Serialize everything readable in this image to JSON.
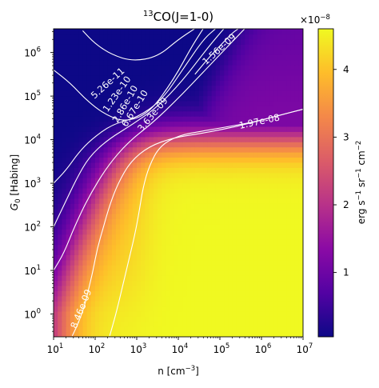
{
  "chart_data": {
    "type": "heatmap",
    "title": {
      "pre": "",
      "sup": "13",
      "post": "CO(J=1-0)"
    },
    "xlabel": {
      "pre": "n [cm",
      "sup": "−3",
      "post": "]"
    },
    "ylabel": {
      "pre": "G",
      "sub": "0",
      "post": " [Habing]"
    },
    "x_scale": "log",
    "y_scale": "log",
    "xlim": [
      10,
      10000000
    ],
    "ylim": [
      0.3,
      3500000
    ],
    "x_ticks": [
      {
        "value": 10,
        "base": "10",
        "exp": "1"
      },
      {
        "value": 100,
        "base": "10",
        "exp": "2"
      },
      {
        "value": 1000,
        "base": "10",
        "exp": "3"
      },
      {
        "value": 10000,
        "base": "10",
        "exp": "4"
      },
      {
        "value": 100000,
        "base": "10",
        "exp": "5"
      },
      {
        "value": 1000000,
        "base": "10",
        "exp": "6"
      },
      {
        "value": 10000000,
        "base": "10",
        "exp": "7"
      }
    ],
    "y_ticks": [
      {
        "value": 1,
        "base": "10",
        "exp": "0"
      },
      {
        "value": 10,
        "base": "10",
        "exp": "1"
      },
      {
        "value": 100,
        "base": "10",
        "exp": "2"
      },
      {
        "value": 1000,
        "base": "10",
        "exp": "3"
      },
      {
        "value": 10000,
        "base": "10",
        "exp": "4"
      },
      {
        "value": 100000,
        "base": "10",
        "exp": "5"
      },
      {
        "value": 1000000,
        "base": "10",
        "exp": "6"
      }
    ],
    "colormap": "plasma",
    "colormap_stops": [
      "#0d0887",
      "#5302a3",
      "#8b0aa5",
      "#b83289",
      "#db5c68",
      "#f48849",
      "#febd2a",
      "#f0f921"
    ],
    "colorbar": {
      "range": [
        0.05,
        4.6
      ],
      "ticks": [
        "1",
        "2",
        "3",
        "4"
      ],
      "tick_values": [
        1,
        2,
        3,
        4
      ],
      "offset": {
        "pre": "×10",
        "sup": "−8"
      },
      "label": {
        "pre": "erg s",
        "s1": "−1",
        "mid1": " sr",
        "s2": "−1",
        "mid2": " cm",
        "s3": "−2"
      }
    },
    "contours": [
      {
        "label": "5.26e-11",
        "level": 5.26e-11,
        "points": [
          [
            1.7,
            6.5
          ],
          [
            2.0,
            6.2
          ],
          [
            2.4,
            5.95
          ],
          [
            2.9,
            5.8
          ],
          [
            3.5,
            5.9
          ],
          [
            4.0,
            6.3
          ],
          [
            4.4,
            6.55
          ]
        ],
        "label_at": [
          2.3,
          5.3
        ],
        "label_angle": -42
      },
      {
        "label": "1.23e-10",
        "level": 1.23e-10,
        "points": [
          [
            1.0,
            5.6
          ],
          [
            1.4,
            5.3
          ],
          [
            1.8,
            4.9
          ],
          [
            2.2,
            4.6
          ],
          [
            2.7,
            4.4
          ],
          [
            3.3,
            4.6
          ],
          [
            3.9,
            5.4
          ],
          [
            4.3,
            6.1
          ],
          [
            4.6,
            6.55
          ]
        ],
        "label_at": [
          2.52,
          5.05
        ],
        "label_angle": -55
      },
      {
        "label": "2.86e-10",
        "level": 2.86e-10,
        "points": [
          [
            1.0,
            3.0
          ],
          [
            1.3,
            3.3
          ],
          [
            1.6,
            3.7
          ],
          [
            1.9,
            4.0
          ],
          [
            2.4,
            4.35
          ],
          [
            3.0,
            4.5
          ],
          [
            3.6,
            4.9
          ],
          [
            4.1,
            5.6
          ],
          [
            4.6,
            6.3
          ],
          [
            4.9,
            6.55
          ]
        ],
        "label_at": [
          2.72,
          4.82
        ],
        "label_angle": -60
      },
      {
        "label": "6.67e-10",
        "level": 6.67e-10,
        "points": [
          [
            1.0,
            2.0
          ],
          [
            1.25,
            2.5
          ],
          [
            1.55,
            3.1
          ],
          [
            1.85,
            3.6
          ],
          [
            2.3,
            4.0
          ],
          [
            2.9,
            4.35
          ],
          [
            3.5,
            4.75
          ],
          [
            4.1,
            5.35
          ],
          [
            4.7,
            6.1
          ],
          [
            5.1,
            6.55
          ]
        ],
        "label_at": [
          2.95,
          4.72
        ],
        "label_angle": -58
      },
      {
        "label": "3.63e-09",
        "level": 3.63e-09,
        "points": [
          [
            1.0,
            1.0
          ],
          [
            1.25,
            1.4
          ],
          [
            1.5,
            2.0
          ],
          [
            1.85,
            2.7
          ],
          [
            2.3,
            3.4
          ],
          [
            2.8,
            3.95
          ],
          [
            3.4,
            4.4
          ],
          [
            4.0,
            4.95
          ],
          [
            4.6,
            5.55
          ],
          [
            5.2,
            6.15
          ],
          [
            5.6,
            6.55
          ]
        ],
        "label_at": [
          3.38,
          4.58
        ],
        "label_angle": -50
      },
      {
        "label": "1.56e-09",
        "level": 1.56e-09,
        "points": [
          [
            4.4,
            5.5
          ],
          [
            4.75,
            5.9
          ],
          [
            5.05,
            6.2
          ],
          [
            5.3,
            6.45
          ],
          [
            5.45,
            6.55
          ]
        ],
        "label_at": [
          4.98,
          6.08
        ],
        "label_angle": -42
      },
      {
        "label": "8.46e-09",
        "level": 8.46e-09,
        "points": [
          [
            1.45,
            -0.5
          ],
          [
            1.6,
            -0.2
          ],
          [
            1.75,
            0.2
          ],
          [
            1.85,
            0.6
          ],
          [
            1.95,
            1.0
          ],
          [
            2.05,
            1.5
          ],
          [
            2.2,
            2.0
          ],
          [
            2.35,
            2.5
          ],
          [
            2.55,
            3.0
          ],
          [
            2.85,
            3.5
          ],
          [
            3.3,
            3.85
          ],
          [
            3.9,
            4.05
          ],
          [
            4.6,
            4.15
          ],
          [
            5.4,
            4.3
          ],
          [
            6.2,
            4.5
          ],
          [
            7.0,
            4.7
          ]
        ],
        "label_at": [
          1.66,
          0.12
        ],
        "label_angle": -68
      },
      {
        "label": "1.97e-08",
        "level": 1.97e-08,
        "points": [
          [
            2.35,
            -0.5
          ],
          [
            2.5,
            0.0
          ],
          [
            2.65,
            0.6
          ],
          [
            2.8,
            1.2
          ],
          [
            2.95,
            1.8
          ],
          [
            3.05,
            2.3
          ],
          [
            3.15,
            2.9
          ],
          [
            3.3,
            3.4
          ],
          [
            3.55,
            3.85
          ],
          [
            4.0,
            4.1
          ],
          [
            4.6,
            4.2
          ],
          [
            5.2,
            4.3
          ],
          [
            5.8,
            4.4
          ],
          [
            6.4,
            4.55
          ],
          [
            7.0,
            4.7
          ]
        ],
        "label_at": [
          5.95,
          4.42
        ],
        "label_angle": -12
      }
    ]
  }
}
